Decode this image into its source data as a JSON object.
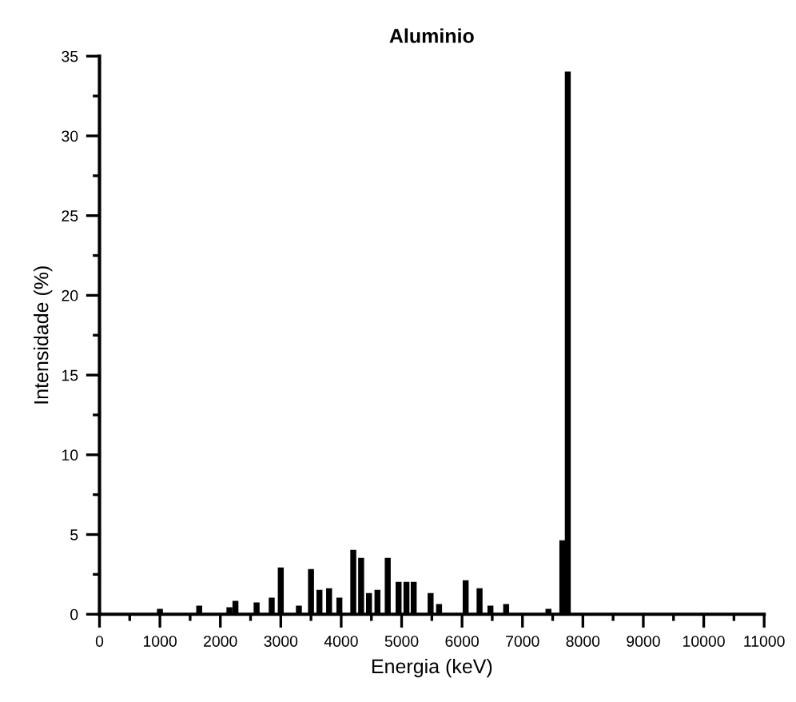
{
  "chart_data": {
    "type": "bar",
    "title": "Aluminio",
    "xlabel": "Energia (keV)",
    "ylabel": "Intensidade (%)",
    "x": [
      1000,
      1650,
      2150,
      2250,
      2600,
      2850,
      3000,
      3300,
      3500,
      3640,
      3800,
      3970,
      4200,
      4330,
      4460,
      4600,
      4770,
      4950,
      5080,
      5200,
      5480,
      5620,
      6060,
      6290,
      6470,
      6730,
      7430,
      7660,
      7750
    ],
    "values": [
      0.3,
      0.5,
      0.4,
      0.8,
      0.7,
      1.0,
      2.9,
      0.5,
      2.8,
      1.5,
      1.6,
      1.0,
      4.0,
      3.5,
      1.3,
      1.5,
      3.5,
      2.0,
      2.0,
      2.0,
      1.3,
      0.6,
      2.1,
      1.6,
      0.5,
      0.6,
      0.3,
      4.6,
      34
    ],
    "color": "#000000",
    "xlim": [
      0,
      11000
    ],
    "xticks": [
      0,
      1000,
      2000,
      3000,
      4000,
      5000,
      6000,
      7000,
      8000,
      9000,
      10000,
      11000
    ],
    "ylim": [
      0,
      35
    ],
    "yticks": [
      0,
      5,
      10,
      15,
      20,
      25,
      30,
      35
    ],
    "grid": false,
    "legend": false
  }
}
